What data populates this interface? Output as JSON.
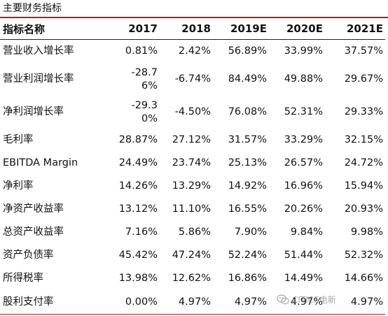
{
  "title": "主要财务指标",
  "header": {
    "label": "指标名称",
    "years": [
      "2017",
      "2018",
      "2019E",
      "2020E",
      "2021E"
    ]
  },
  "rows": [
    {
      "label": "营业收入增长率",
      "values": [
        "0.81%",
        "2.42%",
        "56.89%",
        "33.99%",
        "37.57%"
      ]
    },
    {
      "label": "营业利润增长率",
      "values": [
        "-28.76%",
        "-6.74%",
        "84.49%",
        "49.88%",
        "29.67%"
      ]
    },
    {
      "label": "净利润增长率",
      "values": [
        "-29.30%",
        "-4.50%",
        "76.08%",
        "52.31%",
        "29.33%"
      ]
    },
    {
      "label": "毛利率",
      "values": [
        "28.87%",
        "27.12%",
        "31.57%",
        "33.29%",
        "32.15%"
      ]
    },
    {
      "label": "EBITDA Margin",
      "values": [
        "24.49%",
        "23.74%",
        "25.13%",
        "26.57%",
        "24.72%"
      ]
    },
    {
      "label": "净利率",
      "values": [
        "14.26%",
        "13.29%",
        "14.92%",
        "16.96%",
        "15.94%"
      ]
    },
    {
      "label": "净资产收益率",
      "values": [
        "13.12%",
        "11.10%",
        "16.55%",
        "20.26%",
        "20.93%"
      ]
    },
    {
      "label": "总资产收益率",
      "values": [
        "7.16%",
        "5.86%",
        "7.90%",
        "9.84%",
        "9.98%"
      ]
    },
    {
      "label": "资产负债率",
      "values": [
        "45.42%",
        "47.24%",
        "52.24%",
        "51.44%",
        "52.32%"
      ]
    },
    {
      "label": "所得税率",
      "values": [
        "13.98%",
        "12.62%",
        "16.86%",
        "14.49%",
        "14.66%"
      ]
    },
    {
      "label": "股利支付率",
      "values": [
        "0.00%",
        "4.97%",
        "4.97%",
        "4.97%",
        "4.97%"
      ]
    }
  ],
  "watermark": {
    "text": "CITICS电新",
    "icon": "wechat-icon"
  },
  "colors": {
    "accent_rule": "#c0161c",
    "header_rule": "#222222"
  }
}
